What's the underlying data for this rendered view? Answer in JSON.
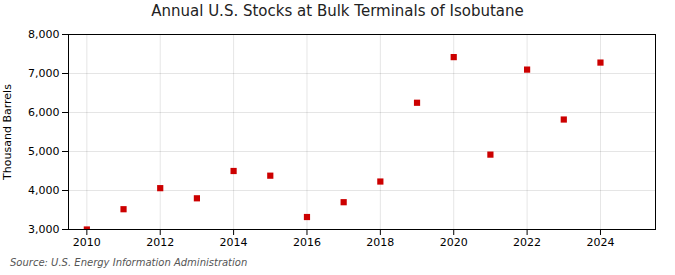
{
  "chart_data": {
    "type": "scatter",
    "title": "Annual U.S. Stocks at Bulk Terminals of Isobutane",
    "ylabel": "Thousand Barrels",
    "caption": "Source: U.S. Energy Information Administration",
    "x": [
      2010,
      2011,
      2012,
      2013,
      2014,
      2015,
      2016,
      2017,
      2018,
      2019,
      2020,
      2021,
      2022,
      2023,
      2024
    ],
    "values": [
      3000,
      3520,
      4060,
      3800,
      4500,
      4380,
      3320,
      3700,
      4230,
      6250,
      7420,
      4920,
      7100,
      5820,
      7280
    ],
    "color": "#cc0000",
    "marker": "square",
    "xlim": [
      2009.5,
      2025.5
    ],
    "xticks": [
      2010,
      2012,
      2014,
      2016,
      2018,
      2020,
      2022,
      2024
    ],
    "ylim": [
      3000,
      8000
    ],
    "yticks": [
      {
        "value": 3000,
        "label": "3,000"
      },
      {
        "value": 4000,
        "label": "4,000"
      },
      {
        "value": 5000,
        "label": "5,000"
      },
      {
        "value": 6000,
        "label": "6,000"
      },
      {
        "value": 7000,
        "label": "7,000"
      },
      {
        "value": 8000,
        "label": "8,000"
      }
    ],
    "grid": true
  }
}
